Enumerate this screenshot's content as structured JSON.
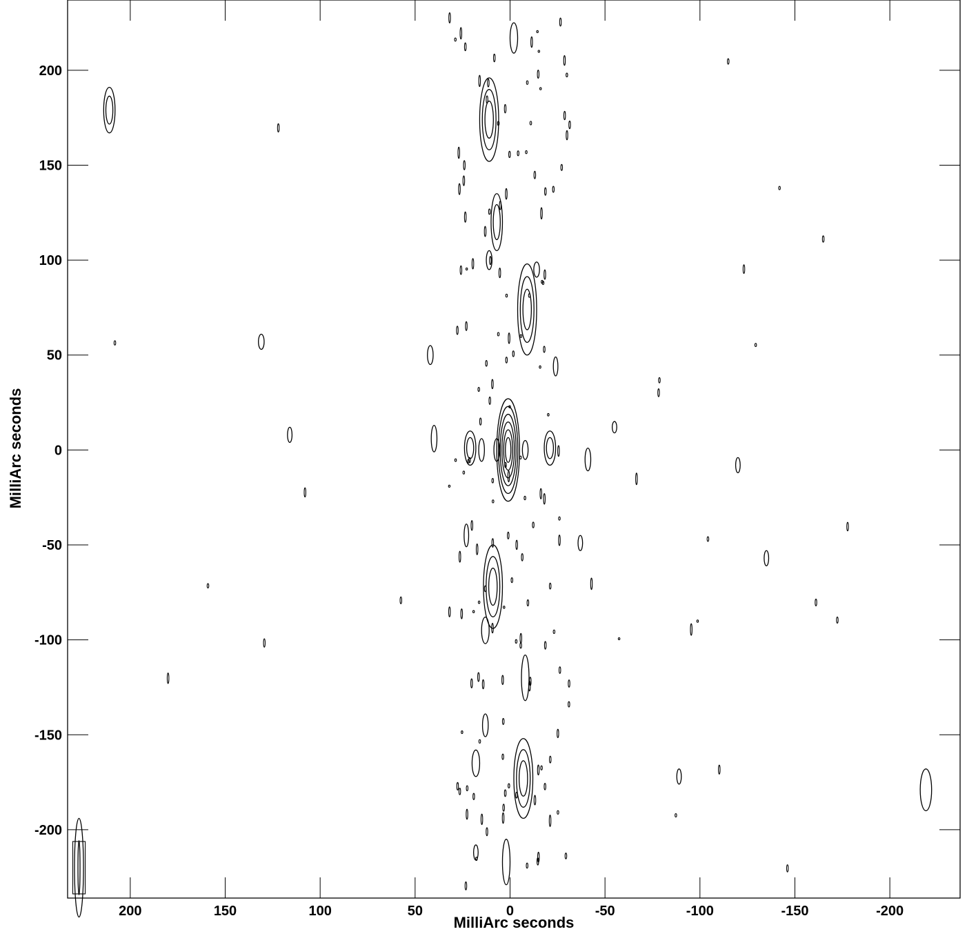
{
  "chart_data": {
    "type": "contour",
    "title": "",
    "xlabel": "MilliArc seconds",
    "ylabel": "MilliArc seconds",
    "xlim": [
      233,
      -237
    ],
    "ylim": [
      -236,
      237
    ],
    "x_ticks": [
      200,
      150,
      100,
      50,
      0,
      -50,
      -100,
      -150,
      -200
    ],
    "x_tick_labels": [
      "200",
      "150",
      "100",
      "50",
      "0",
      "-50",
      "-100",
      "-150",
      "-200"
    ],
    "y_ticks": [
      200,
      150,
      100,
      50,
      0,
      -50,
      -100,
      -150,
      -200
    ],
    "y_tick_labels": [
      "200",
      "150",
      "100",
      "50",
      "0",
      "-50",
      "-100",
      "-150",
      "-200"
    ],
    "grid": false,
    "contour_color": "#000000",
    "beam": {
      "x": 227,
      "y": -220,
      "minor_axis": 4,
      "major_axis": 26
    },
    "sources": [
      {
        "x": 1,
        "y": 0,
        "w": 6,
        "h": 27,
        "levels": 6
      },
      {
        "x": 11,
        "y": 174,
        "w": 5,
        "h": 22,
        "levels": 3
      },
      {
        "x": 7,
        "y": 120,
        "w": 3,
        "h": 15,
        "levels": 2
      },
      {
        "x": -9,
        "y": 74,
        "w": 5,
        "h": 24,
        "levels": 3
      },
      {
        "x": 9,
        "y": -72,
        "w": 5,
        "h": 22,
        "levels": 3
      },
      {
        "x": -7,
        "y": -173,
        "w": 5,
        "h": 21,
        "levels": 3
      },
      {
        "x": -8,
        "y": -120,
        "w": 2,
        "h": 12,
        "levels": 1
      },
      {
        "x": 2,
        "y": -217,
        "w": 2,
        "h": 12,
        "levels": 1
      },
      {
        "x": -2,
        "y": 217,
        "w": 2,
        "h": 8,
        "levels": 1
      },
      {
        "x": 21,
        "y": 1,
        "w": 3,
        "h": 9,
        "levels": 2
      },
      {
        "x": -21,
        "y": 1,
        "w": 3,
        "h": 9,
        "levels": 2
      },
      {
        "x": 15,
        "y": 0,
        "w": 1.5,
        "h": 6,
        "levels": 1
      },
      {
        "x": 7,
        "y": 0,
        "w": 1.5,
        "h": 6,
        "levels": 1
      },
      {
        "x": -8,
        "y": 0,
        "w": 1.5,
        "h": 5,
        "levels": 1
      },
      {
        "x": 40,
        "y": 6,
        "w": 1.5,
        "h": 7,
        "levels": 1
      },
      {
        "x": -41,
        "y": -5,
        "w": 1.5,
        "h": 6,
        "levels": 1
      },
      {
        "x": 211,
        "y": 179,
        "w": 3,
        "h": 12,
        "levels": 2
      },
      {
        "x": 131,
        "y": 57,
        "w": 1.5,
        "h": 4,
        "levels": 1
      },
      {
        "x": 116,
        "y": 8,
        "w": 1.2,
        "h": 4,
        "levels": 1
      },
      {
        "x": -120,
        "y": -8,
        "w": 1.2,
        "h": 4,
        "levels": 1
      },
      {
        "x": -135,
        "y": -57,
        "w": 1.2,
        "h": 4,
        "levels": 1
      },
      {
        "x": -219,
        "y": -179,
        "w": 3,
        "h": 11,
        "levels": 1
      },
      {
        "x": 42,
        "y": 50,
        "w": 1.5,
        "h": 5,
        "levels": 1
      },
      {
        "x": -24,
        "y": 44,
        "w": 1.2,
        "h": 5,
        "levels": 1
      },
      {
        "x": 23,
        "y": -45,
        "w": 1.2,
        "h": 6,
        "levels": 1
      },
      {
        "x": -37,
        "y": -49,
        "w": 1.2,
        "h": 4,
        "levels": 1
      },
      {
        "x": 13,
        "y": -95,
        "w": 2,
        "h": 7,
        "levels": 1
      },
      {
        "x": 18,
        "y": -165,
        "w": 2,
        "h": 7,
        "levels": 1
      },
      {
        "x": 13,
        "y": -145,
        "w": 1.5,
        "h": 6,
        "levels": 1
      },
      {
        "x": -89,
        "y": -172,
        "w": 1.2,
        "h": 4,
        "levels": 1
      },
      {
        "x": 11,
        "y": 100,
        "w": 1.5,
        "h": 5,
        "levels": 1
      },
      {
        "x": -14,
        "y": 95,
        "w": 1.5,
        "h": 4,
        "levels": 1
      },
      {
        "x": 18,
        "y": -212,
        "w": 1.2,
        "h": 4,
        "levels": 1
      },
      {
        "x": -55,
        "y": 12,
        "w": 1.2,
        "h": 3,
        "levels": 1
      }
    ]
  }
}
